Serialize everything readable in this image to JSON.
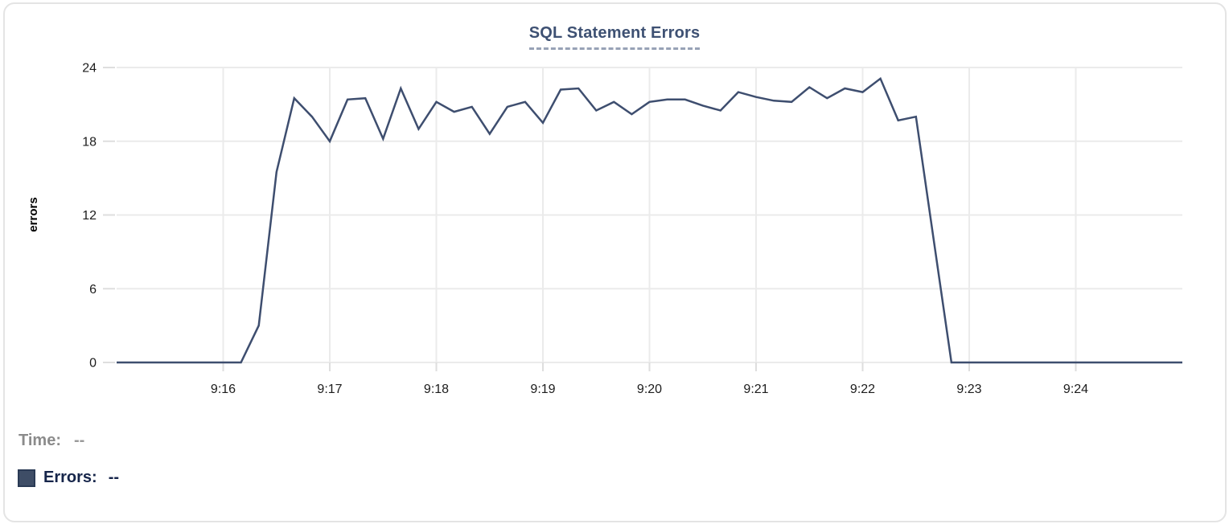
{
  "card": {
    "title": "SQL Statement Errors"
  },
  "tooltip_readout": {
    "time_label": "Time:",
    "time_value": "--",
    "errors_label": "Errors:",
    "errors_value": "--"
  },
  "colors": {
    "line": "#3e4e6f",
    "swatch_fill": "#3e4d66",
    "swatch_border": "#2a3a55",
    "grid": "#ebebeb",
    "tick_stub": "#dedede",
    "tick_label": "#1c1c1c",
    "axis_title": "#000000",
    "title": "#3e5173"
  },
  "chart_data": {
    "type": "line",
    "title": "SQL Statement Errors",
    "xlabel": "",
    "ylabel": "errors",
    "ylim": [
      0,
      24
    ],
    "y_ticks": [
      0,
      6,
      12,
      18,
      24
    ],
    "x_ticks": [
      "9:16",
      "9:17",
      "9:18",
      "9:19",
      "9:20",
      "9:21",
      "9:22",
      "9:23",
      "9:24"
    ],
    "x_tick_seconds": [
      60,
      120,
      180,
      240,
      300,
      360,
      420,
      480,
      540
    ],
    "x_range": [
      "9:15:00",
      "9:25:00"
    ],
    "grid": true,
    "legend_position": "bottom-left",
    "series": [
      {
        "name": "Errors",
        "start_time": "9:15:00",
        "interval_seconds": 10,
        "values": [
          0,
          0,
          0,
          0,
          0,
          0,
          0,
          0,
          3,
          15.5,
          21.5,
          20,
          18,
          21.4,
          21.5,
          18.2,
          22.3,
          19,
          21.2,
          20.4,
          20.8,
          18.6,
          20.8,
          21.2,
          19.5,
          22.2,
          22.3,
          20.5,
          21.2,
          20.2,
          21.2,
          21.4,
          21.4,
          20.9,
          20.5,
          22,
          21.6,
          21.3,
          21.2,
          22.4,
          21.5,
          22.3,
          22,
          23.1,
          19.7,
          20,
          10,
          0,
          0,
          0,
          0,
          0,
          0,
          0,
          0,
          0,
          0,
          0,
          0,
          0,
          0
        ]
      }
    ]
  }
}
